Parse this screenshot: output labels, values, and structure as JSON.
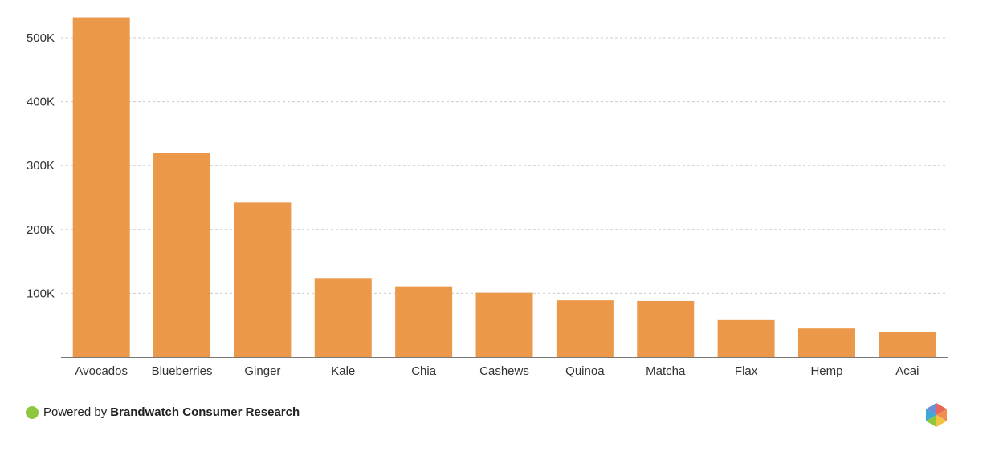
{
  "chart_data": {
    "type": "bar",
    "categories": [
      "Avocados",
      "Blueberries",
      "Ginger",
      "Kale",
      "Chia",
      "Cashews",
      "Quinoa",
      "Matcha",
      "Flax",
      "Hemp",
      "Acai"
    ],
    "values": [
      532000,
      320000,
      242000,
      124000,
      111000,
      101000,
      89000,
      88000,
      58000,
      45000,
      39000
    ],
    "title": "",
    "xlabel": "",
    "ylabel": "",
    "ylim": [
      0,
      500000
    ],
    "yticks": [
      100000,
      200000,
      300000,
      400000,
      500000
    ],
    "ytick_labels": [
      "100K",
      "200K",
      "300K",
      "400K",
      "500K"
    ],
    "grid": "horizontal-dashed",
    "legend": "none",
    "bar_color": "#EB984B"
  },
  "footer": {
    "prefix": "Powered by",
    "brand": "Brandwatch Consumer Research",
    "dot_color": "#8DC63F"
  },
  "colors": {
    "axis": "#777777",
    "grid": "#cccccc",
    "text": "#333333"
  }
}
